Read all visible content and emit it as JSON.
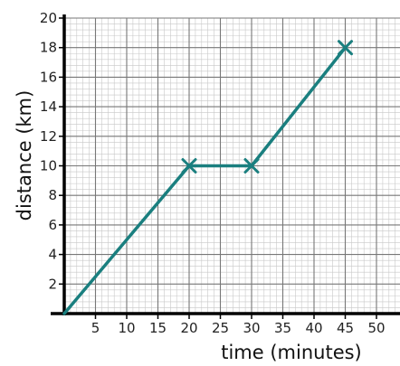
{
  "chart_data": {
    "type": "line",
    "title": "",
    "xlabel": "time (minutes)",
    "ylabel": "distance (km)",
    "xlim": [
      0,
      54
    ],
    "ylim": [
      0,
      20
    ],
    "x_ticks": [
      5,
      10,
      15,
      20,
      25,
      30,
      35,
      40,
      45,
      50
    ],
    "y_ticks": [
      2,
      4,
      6,
      8,
      10,
      12,
      14,
      16,
      18,
      20
    ],
    "grid": true,
    "minor_grid_step": 1,
    "series": [
      {
        "points": [
          {
            "x": 0,
            "y": 0
          },
          {
            "x": 20,
            "y": 10
          },
          {
            "x": 30,
            "y": 10
          },
          {
            "x": 45,
            "y": 18
          }
        ],
        "markers": [
          {
            "x": 20,
            "y": 10
          },
          {
            "x": 30,
            "y": 10
          },
          {
            "x": 45,
            "y": 18
          }
        ],
        "color": "#1a7f7f"
      }
    ],
    "colors": {
      "line": "#1a7f7f",
      "axis": "#000000",
      "major_grid": "#777777",
      "minor_grid": "#c8c8c8"
    }
  }
}
